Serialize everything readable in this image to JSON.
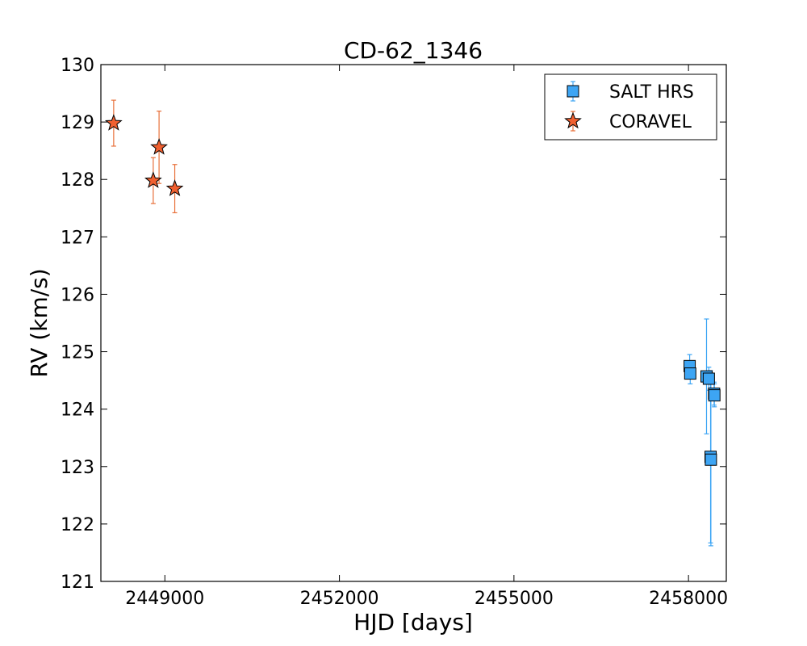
{
  "chart_data": {
    "type": "scatter",
    "title": "CD-62_1346",
    "xlabel": "HJD [days]",
    "ylabel": "RV (km/s)",
    "xlim": [
      2447900,
      2458650
    ],
    "ylim": [
      121,
      130
    ],
    "xticks": [
      2449000,
      2452000,
      2455000,
      2458000
    ],
    "yticks": [
      121,
      122,
      123,
      124,
      125,
      126,
      127,
      128,
      129,
      130
    ],
    "grid": false,
    "legend_position": "top-right",
    "series": [
      {
        "name": "SALT HRS",
        "marker": "square",
        "color": "#3da5f4",
        "error_color": "#3da5f4",
        "points": [
          {
            "x": 2458020,
            "y": 124.75,
            "err": 0.2
          },
          {
            "x": 2458030,
            "y": 124.62,
            "err": 0.18
          },
          {
            "x": 2458310,
            "y": 124.57,
            "err": 1.0
          },
          {
            "x": 2458350,
            "y": 124.53,
            "err": 0.2
          },
          {
            "x": 2458380,
            "y": 123.17,
            "err": 1.5
          },
          {
            "x": 2458385,
            "y": 123.12,
            "err": 1.5
          },
          {
            "x": 2458440,
            "y": 124.27,
            "err": 0.2
          },
          {
            "x": 2458445,
            "y": 124.24,
            "err": 0.2
          }
        ]
      },
      {
        "name": "CORAVEL",
        "marker": "star",
        "color": "#f06030",
        "error_color": "#e8703a",
        "points": [
          {
            "x": 2448120,
            "y": 128.98,
            "err": 0.4
          },
          {
            "x": 2448800,
            "y": 127.98,
            "err": 0.4
          },
          {
            "x": 2448900,
            "y": 128.56,
            "err": 0.63
          },
          {
            "x": 2449170,
            "y": 127.84,
            "err": 0.42
          }
        ]
      }
    ]
  }
}
